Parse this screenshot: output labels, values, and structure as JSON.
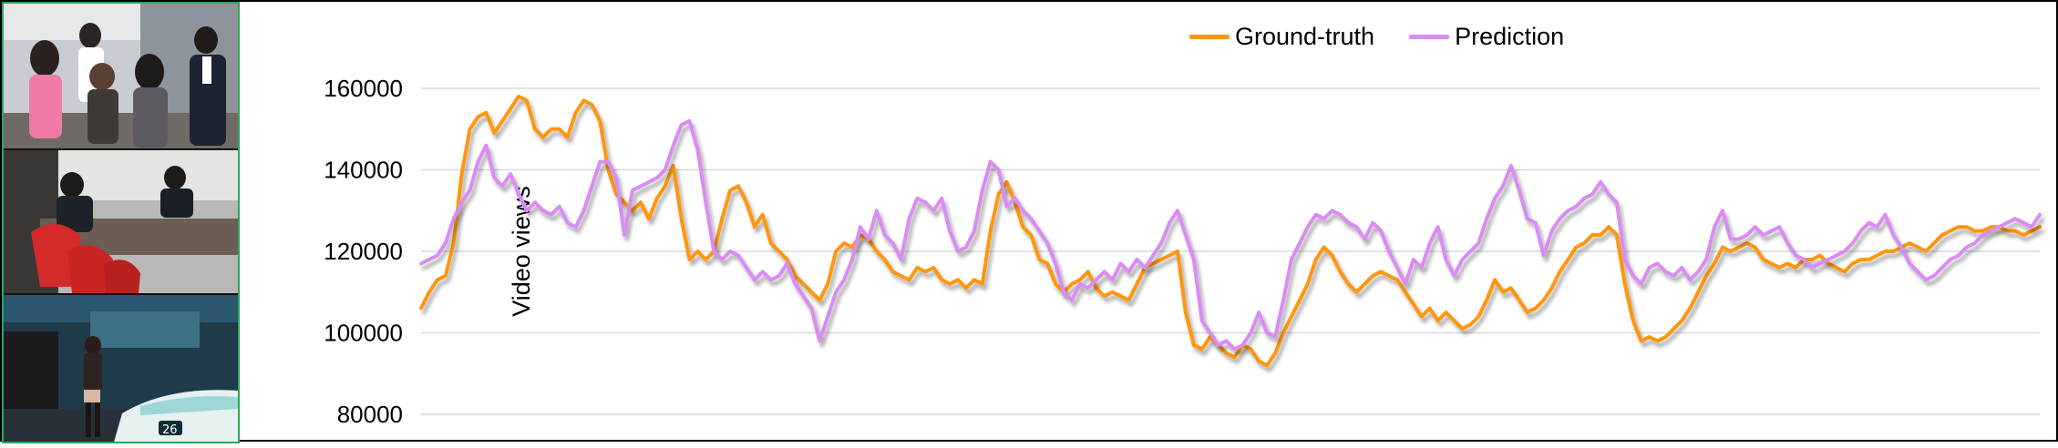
{
  "colors": {
    "ground_truth": "#ff9610",
    "prediction": "#d98cf2"
  },
  "chart_data": {
    "type": "line",
    "title": "",
    "xlabel": "",
    "ylabel": "Video views",
    "ylim": [
      80000,
      160000
    ],
    "yticks": [
      "160000",
      "140000",
      "120000",
      "100000",
      "80000"
    ],
    "grid": true,
    "legend": "top-center",
    "x": "frame index 0-199",
    "series": [
      {
        "name": "Ground-truth",
        "color": "#ff9610",
        "values": [
          106000,
          110000,
          113000,
          114000,
          122000,
          139000,
          150000,
          153000,
          154000,
          149000,
          152000,
          155000,
          158000,
          157000,
          150000,
          148000,
          150000,
          150000,
          148000,
          154000,
          157000,
          156000,
          152000,
          140000,
          134000,
          132000,
          130000,
          132000,
          128000,
          133000,
          136000,
          141000,
          128000,
          118000,
          120000,
          118000,
          120000,
          128000,
          135000,
          136000,
          132000,
          126000,
          129000,
          122000,
          120000,
          118000,
          114000,
          112000,
          110000,
          108000,
          112000,
          120000,
          122000,
          121000,
          124000,
          123000,
          120000,
          118000,
          115000,
          114000,
          113000,
          116000,
          115000,
          116000,
          113000,
          112000,
          113000,
          111000,
          113000,
          112000,
          125000,
          134000,
          137000,
          132000,
          126000,
          124000,
          118000,
          117000,
          112000,
          110000,
          112000,
          113000,
          115000,
          111000,
          109000,
          110000,
          109000,
          108000,
          112000,
          116000,
          117000,
          118000,
          119000,
          120000,
          105000,
          97000,
          96000,
          99000,
          97000,
          95000,
          94000,
          97000,
          96000,
          93000,
          92000,
          95000,
          100000,
          104000,
          108000,
          112000,
          118000,
          121000,
          119000,
          115000,
          112000,
          110000,
          112000,
          114000,
          115000,
          114000,
          113000,
          110000,
          107000,
          104000,
          106000,
          103000,
          105000,
          103000,
          101000,
          102000,
          104000,
          108000,
          113000,
          110000,
          111000,
          108000,
          105000,
          106000,
          108000,
          111000,
          115000,
          118000,
          121000,
          122000,
          124000,
          124000,
          126000,
          124000,
          112000,
          103000,
          98000,
          99000,
          98000,
          99000,
          101000,
          103000,
          106000,
          110000,
          114000,
          117000,
          121000,
          120000,
          121000,
          122000,
          121000,
          118000,
          117000,
          116000,
          117000,
          116000,
          118000,
          118000,
          119000,
          117000,
          116000,
          115000,
          117000,
          118000,
          118000,
          119000,
          120000,
          120000,
          121000,
          122000,
          121000,
          120000,
          122000,
          124000,
          125000,
          126000,
          126000,
          125000,
          125000,
          126000,
          126000,
          125000,
          125000,
          124000,
          125000,
          126000
        ]
      },
      {
        "name": "Prediction",
        "color": "#d98cf2",
        "values": [
          117000,
          118000,
          119000,
          122000,
          128000,
          132000,
          135000,
          142000,
          146000,
          138000,
          136000,
          139000,
          134000,
          130000,
          132000,
          130000,
          129000,
          131000,
          127000,
          126000,
          130000,
          136000,
          142000,
          142000,
          138000,
          124000,
          135000,
          136000,
          137000,
          138000,
          140000,
          146000,
          151000,
          152000,
          145000,
          132000,
          120000,
          118000,
          120000,
          119000,
          116000,
          113000,
          115000,
          113000,
          114000,
          117000,
          112000,
          109000,
          106000,
          98000,
          104000,
          110000,
          113000,
          118000,
          126000,
          123000,
          130000,
          124000,
          122000,
          118000,
          128000,
          133000,
          132000,
          130000,
          133000,
          125000,
          120000,
          121000,
          125000,
          135000,
          142000,
          140000,
          131000,
          133000,
          130000,
          128000,
          125000,
          122000,
          117000,
          110000,
          108000,
          112000,
          111000,
          113000,
          115000,
          113000,
          117000,
          115000,
          118000,
          116000,
          119000,
          122000,
          127000,
          130000,
          124000,
          118000,
          103000,
          100000,
          97000,
          98000,
          96000,
          97000,
          100000,
          105000,
          100000,
          99000,
          108000,
          118000,
          122000,
          126000,
          129000,
          128000,
          130000,
          129000,
          127000,
          126000,
          123000,
          127000,
          125000,
          120000,
          116000,
          112000,
          118000,
          116000,
          122000,
          126000,
          118000,
          114000,
          118000,
          120000,
          122000,
          128000,
          133000,
          136000,
          141000,
          135000,
          128000,
          127000,
          119000,
          125000,
          128000,
          130000,
          131000,
          133000,
          134000,
          137000,
          134000,
          132000,
          118000,
          114000,
          112000,
          116000,
          117000,
          115000,
          114000,
          116000,
          113000,
          115000,
          118000,
          126000,
          130000,
          123000,
          123000,
          124000,
          126000,
          124000,
          125000,
          126000,
          122000,
          119000,
          118000,
          116000,
          117000,
          118000,
          119000,
          120000,
          122000,
          125000,
          127000,
          126000,
          129000,
          124000,
          121000,
          117000,
          115000,
          113000,
          114000,
          116000,
          118000,
          119000,
          121000,
          122000,
          124000,
          125000,
          126000,
          127000,
          128000,
          127000,
          126000,
          129000
        ]
      }
    ]
  },
  "thumbnails": [
    {
      "scene": "office group of four people"
    },
    {
      "scene": "two men seated at a desk with red chairs"
    },
    {
      "scene": "night street with taxi and standing woman"
    }
  ]
}
